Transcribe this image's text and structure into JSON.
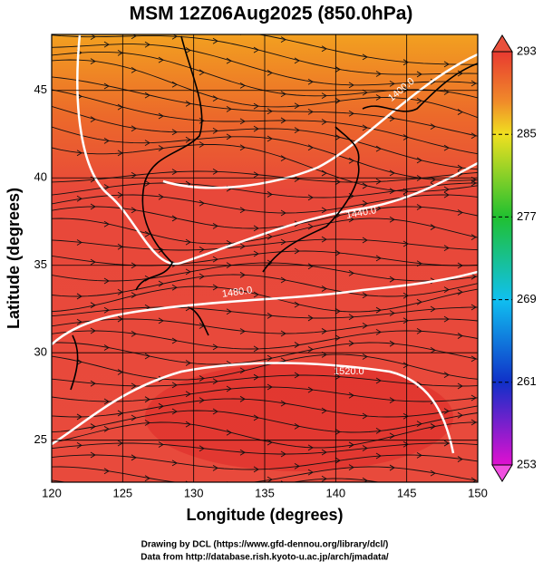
{
  "map": {
    "title": "MSM 12Z06Aug2025 (850.0hPa)",
    "xlabel": "Longitude (degrees)",
    "ylabel": "Latitude  (degrees)",
    "xlim": [
      120,
      150
    ],
    "ylim": [
      22.6,
      48.2
    ],
    "xticks": [
      120,
      125,
      130,
      135,
      140,
      145,
      150
    ],
    "yticks": [
      25,
      30,
      35,
      40,
      45
    ],
    "colorbar": {
      "lim": [
        253,
        293
      ],
      "ticks": [
        253,
        261,
        269,
        277,
        285,
        293
      ]
    },
    "contour_labels": [
      "1400.0",
      "1440.0",
      "1480.0",
      "1520.0"
    ]
  },
  "credits": [
    "Drawing by DCL (https://www.gfd-dennou.org/library/dcl/)",
    "Data from http://database.rish.kyoto-u.ac.jp/arch/jmadata/"
  ]
}
